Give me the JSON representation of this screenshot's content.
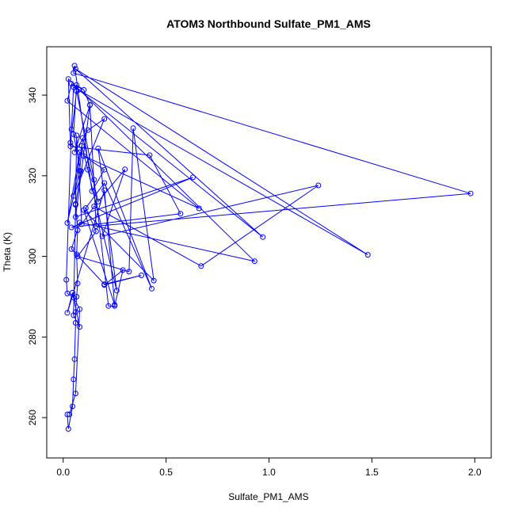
{
  "chart_data": {
    "type": "line",
    "title": "ATOM3 Northbound Sulfate_PM1_AMS",
    "xlabel": "Sulfate_PM1_AMS",
    "ylabel": "Theta (K)",
    "xlim": [
      -0.08,
      2.08
    ],
    "ylim": [
      250,
      352
    ],
    "xticks": [
      "0.0",
      "0.5",
      "1.0",
      "1.5",
      "2.0"
    ],
    "yticks": [
      "260",
      "280",
      "300",
      "320",
      "340"
    ],
    "grid": false,
    "legend": "none",
    "series": [
      {
        "color": "#0000ff",
        "marker": "open-circle",
        "x": [
          0.02,
          0.025,
          0.045,
          0.05,
          0.055,
          0.06,
          0.06,
          0.065,
          0.07,
          0.065,
          0.07,
          0.06,
          0.085,
          0.05,
          0.065,
          0.1,
          0.13,
          0.055,
          0.12,
          0.2,
          0.05,
          0.09,
          0.12,
          0.26,
          0.17,
          0.43,
          0.2,
          0.11,
          0.16,
          0.07,
          0.32,
          0.34,
          0.44,
          0.1,
          0.25,
          0.2,
          0.02,
          0.045,
          0.08,
          0.05,
          0.06,
          0.065,
          0.09,
          0.15,
          0.67,
          1.24,
          0.19,
          0.3,
          0.17,
          0.095,
          0.08,
          0.02,
          0.08,
          0.035,
          0.065,
          0.15,
          0.22,
          0.25,
          0.29,
          0.2,
          0.38,
          0.2,
          0.04,
          0.08,
          0.93,
          0.025,
          0.035,
          0.42,
          0.57,
          0.04,
          0.63,
          0.06,
          0.13,
          0.16,
          1.98,
          0.05,
          0.055,
          0.14,
          0.2,
          0.1,
          0.66,
          0.02,
          0.04,
          0.075,
          0.97,
          0.06,
          1.48,
          0.05,
          0.04,
          0.015,
          0.02,
          0.05,
          0.08,
          0.06,
          0.03
        ],
        "y": [
          260.8,
          257.2,
          262.8,
          269.5,
          274.5,
          283.5,
          286.2,
          290.0,
          293.3,
          300.5,
          306.5,
          312.8,
          321.2,
          330.3,
          342.5,
          341.3,
          337.5,
          325.8,
          331.3,
          334.1,
          315.0,
          327.4,
          321.5,
          291.5,
          326.8,
          292.0,
          318.2,
          312.0,
          306.2,
          300.0,
          296.2,
          331.8,
          294.0,
          311.5,
          288.0,
          316.4,
          286.0,
          291.0,
          282.5,
          285.4,
          313.0,
          330.0,
          308.0,
          312.4,
          297.6,
          317.6,
          305.0,
          321.6,
          313.6,
          329.4,
          321.2,
          308.3,
          325.8,
          328.2,
          341.0,
          319.0,
          287.7,
          287.7,
          296.6,
          292.9,
          295.3,
          293.1,
          301.8,
          308.4,
          298.8,
          344.0,
          327.3,
          325.1,
          310.6,
          307.2,
          319.6,
          309.8,
          337.6,
          307.5,
          315.6,
          345.5,
          347.3,
          316.2,
          321.5,
          324.9,
          311.9,
          338.6,
          342.8,
          341.3,
          304.8,
          346.5,
          300.4,
          342.0,
          331.5,
          294.2,
          290.8,
          289.8,
          286.9,
          266.0,
          260.8
        ]
      }
    ]
  }
}
